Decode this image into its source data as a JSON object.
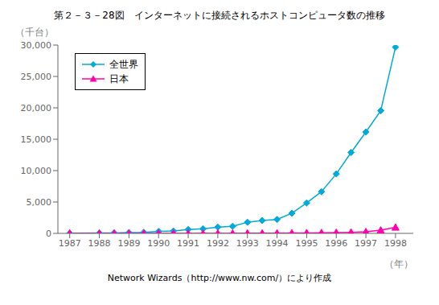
{
  "chart_data": {
    "type": "line",
    "title": "第２－３－28図　インターネットに接続されるホストコンピュータ数の推移",
    "ylabel": "（千台）",
    "xlabel": "（年）",
    "footnote": "Network Wizards（http://www.nw.com/）により作成",
    "x": [
      1987,
      1988,
      1988.5,
      1989,
      1989.5,
      1990,
      1990.5,
      1991,
      1991.5,
      1992,
      1992.5,
      1993,
      1993.5,
      1994,
      1994.5,
      1995,
      1995.5,
      1996,
      1996.5,
      1997,
      1997.5,
      1998
    ],
    "series": [
      {
        "name": "全世界",
        "color": "#00AADD",
        "marker": "diamond",
        "values": [
          28,
          56,
          80,
          130,
          160,
          313,
          376,
          617,
          727,
          992,
          1136,
          1776,
          2056,
          2217,
          3212,
          4852,
          6642,
          9472,
          12881,
          16146,
          19540,
          29670
        ]
      },
      {
        "name": "日本",
        "color": "#FF00AA",
        "marker": "triangle",
        "values": [
          0,
          0,
          0,
          0,
          0,
          0,
          0,
          0,
          0,
          10,
          15,
          20,
          30,
          40,
          60,
          80,
          100,
          130,
          170,
          250,
          500,
          960
        ]
      }
    ],
    "xlim": [
      1986.6,
      1998.6
    ],
    "xticks": [
      1987,
      1988,
      1989,
      1990,
      1991,
      1992,
      1993,
      1994,
      1995,
      1996,
      1997,
      1998
    ],
    "ylim": [
      0,
      30000
    ],
    "yticks": [
      0,
      {
        "value": 5000,
        "label": "5,000"
      },
      {
        "value": 10000,
        "label": "10,000"
      },
      {
        "value": 15000,
        "label": "15,000"
      },
      {
        "value": 20000,
        "label": "20,000"
      },
      {
        "value": 25000,
        "label": "25,000"
      },
      {
        "value": 30000,
        "label": "30,000"
      }
    ],
    "grid": false,
    "legend": "upper left"
  }
}
